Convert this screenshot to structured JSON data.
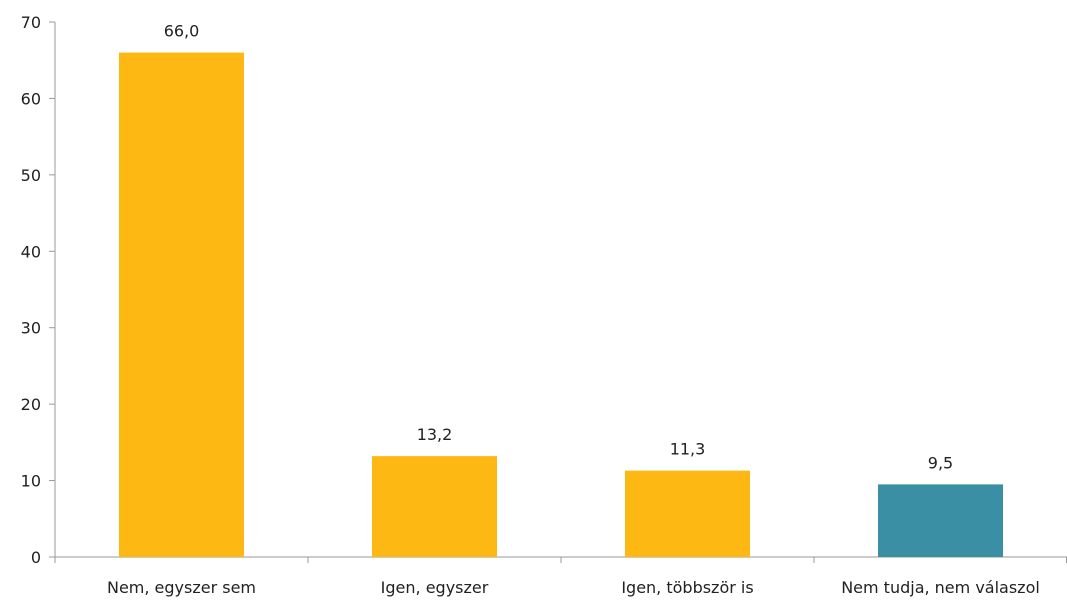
{
  "chart_data": {
    "type": "bar",
    "title": "",
    "xlabel": "",
    "ylabel": "",
    "categories": [
      "Nem, egyszer sem",
      "Igen, egyszer",
      "Igen, többször is",
      "Nem tudja, nem válaszol"
    ],
    "values": [
      66.0,
      13.2,
      11.3,
      9.5
    ],
    "value_labels": [
      "66,0",
      "13,2",
      "11,3",
      "9,5"
    ],
    "ylim": [
      0,
      70
    ],
    "yticks": [
      0,
      10,
      20,
      30,
      40,
      50,
      60,
      70
    ],
    "bar_colors": [
      "#FDB813",
      "#FDB813",
      "#FDB813",
      "#3A8FA5"
    ],
    "grid": false,
    "legend": "none"
  }
}
